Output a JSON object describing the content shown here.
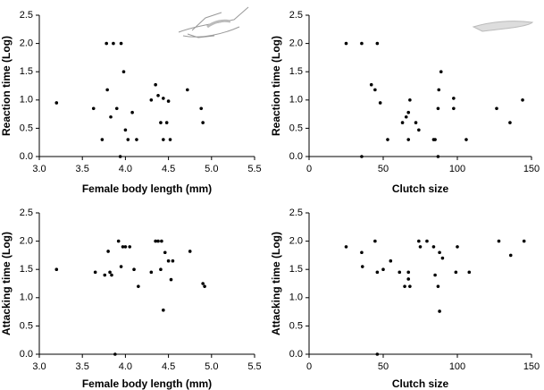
{
  "chart_data": [
    {
      "type": "scatter",
      "xlabel": "Female body length (mm)",
      "ylabel": "Reaction time (Log)",
      "x": [
        3.2,
        3.63,
        3.73,
        3.78,
        3.79,
        3.83,
        3.86,
        3.9,
        3.95,
        3.94,
        3.98,
        4.0,
        4.03,
        4.08,
        4.13,
        4.3,
        4.35,
        4.38,
        4.41,
        4.44,
        4.44,
        4.48,
        4.5,
        4.52,
        4.72,
        4.88,
        4.9
      ],
      "values": [
        0.95,
        0.85,
        0.3,
        2.0,
        1.18,
        0.7,
        2.0,
        0.85,
        2.0,
        0.0,
        1.5,
        0.47,
        0.3,
        0.78,
        0.3,
        1.0,
        1.27,
        1.08,
        0.6,
        1.03,
        0.3,
        0.6,
        0.98,
        0.3,
        1.18,
        0.85,
        0.6
      ],
      "xlim": [
        3.0,
        5.5
      ],
      "ylim": [
        0,
        2.5
      ],
      "xticks": [
        {
          "value": 3,
          "label": "3.0"
        },
        3.5,
        {
          "value": 4,
          "label": "4.0"
        },
        4.5,
        {
          "value": 5,
          "label": "5.0"
        },
        5.5
      ],
      "yticks": [
        {
          "value": 0,
          "label": "0.0"
        },
        0.5,
        {
          "value": 1,
          "label": "1.0"
        },
        1.5,
        {
          "value": 2,
          "label": "2.0"
        },
        2.5
      ]
    },
    {
      "type": "scatter",
      "xlabel": "Clutch size",
      "ylabel": "Reaction time (Log)",
      "x": [
        25,
        35.5,
        46,
        42,
        44.5,
        48,
        53,
        63,
        65.5,
        67,
        68,
        67,
        72,
        74,
        84,
        85,
        87,
        87.5,
        89,
        87,
        97.5,
        97.5,
        106,
        126.5,
        135.5,
        144,
        35.5
      ],
      "values": [
        2.0,
        2.0,
        2.0,
        1.27,
        1.18,
        0.95,
        0.3,
        0.6,
        0.7,
        0.78,
        1.0,
        0.3,
        0.6,
        0.47,
        0.3,
        0.3,
        0.85,
        1.18,
        1.5,
        0.0,
        1.03,
        0.85,
        0.3,
        0.85,
        0.6,
        1.0,
        0.0
      ],
      "xlim": [
        0,
        150
      ],
      "ylim": [
        0,
        2.5
      ],
      "xticks": [
        0,
        50,
        100,
        150
      ],
      "yticks": [
        {
          "value": 0,
          "label": "0.0"
        },
        0.5,
        {
          "value": 1,
          "label": "1.0"
        },
        1.5,
        {
          "value": 2,
          "label": "2.0"
        },
        2.5
      ]
    },
    {
      "type": "scatter",
      "xlabel": "Female body length (mm)",
      "ylabel": "Attacking time (Log)",
      "x": [
        3.2,
        3.65,
        3.76,
        3.8,
        3.82,
        3.84,
        3.88,
        3.92,
        3.95,
        3.97,
        4.0,
        4.05,
        4.1,
        4.15,
        4.3,
        4.35,
        4.38,
        4.42,
        4.41,
        4.44,
        4.46,
        4.5,
        4.53,
        4.55,
        4.75,
        4.9,
        4.92
      ],
      "values": [
        1.5,
        1.45,
        1.4,
        1.82,
        1.45,
        1.4,
        0.0,
        2.0,
        1.55,
        1.9,
        1.9,
        1.9,
        1.5,
        1.2,
        1.45,
        2.0,
        2.0,
        2.0,
        1.5,
        0.78,
        1.8,
        1.65,
        1.32,
        1.65,
        1.82,
        1.25,
        1.2
      ],
      "xlim": [
        3.0,
        5.5
      ],
      "ylim": [
        0,
        2.5
      ],
      "xticks": [
        {
          "value": 3,
          "label": "3.0"
        },
        3.5,
        {
          "value": 4,
          "label": "4.0"
        },
        4.5,
        {
          "value": 5,
          "label": "5.0"
        },
        5.5
      ],
      "yticks": [
        {
          "value": 0,
          "label": "0.0"
        },
        0.5,
        {
          "value": 1,
          "label": "1.0"
        },
        1.5,
        {
          "value": 2,
          "label": "2.0"
        },
        2.5
      ]
    },
    {
      "type": "scatter",
      "xlabel": "Clutch size",
      "ylabel": "Attacking time (Log)",
      "x": [
        25,
        35.5,
        36,
        44.5,
        46,
        50,
        55,
        61,
        64.5,
        67,
        67,
        68,
        74,
        75,
        79.5,
        84,
        85,
        87,
        88,
        88,
        90,
        99,
        100,
        108,
        128,
        136,
        145,
        46
      ],
      "values": [
        1.9,
        1.8,
        1.55,
        2.0,
        1.45,
        1.5,
        1.65,
        1.45,
        1.2,
        1.45,
        1.33,
        1.2,
        2.0,
        1.9,
        2.0,
        1.9,
        1.4,
        1.2,
        1.8,
        0.76,
        1.7,
        1.45,
        1.9,
        1.45,
        2.0,
        1.75,
        2.0,
        0.0
      ],
      "xlim": [
        0,
        150
      ],
      "ylim": [
        0,
        2.5
      ],
      "xticks": [
        0,
        50,
        100,
        150
      ],
      "yticks": [
        {
          "value": 0,
          "label": "0.0"
        },
        0.5,
        {
          "value": 1,
          "label": "1.0"
        },
        1.5,
        {
          "value": 2,
          "label": "2.0"
        },
        2.5
      ]
    }
  ]
}
